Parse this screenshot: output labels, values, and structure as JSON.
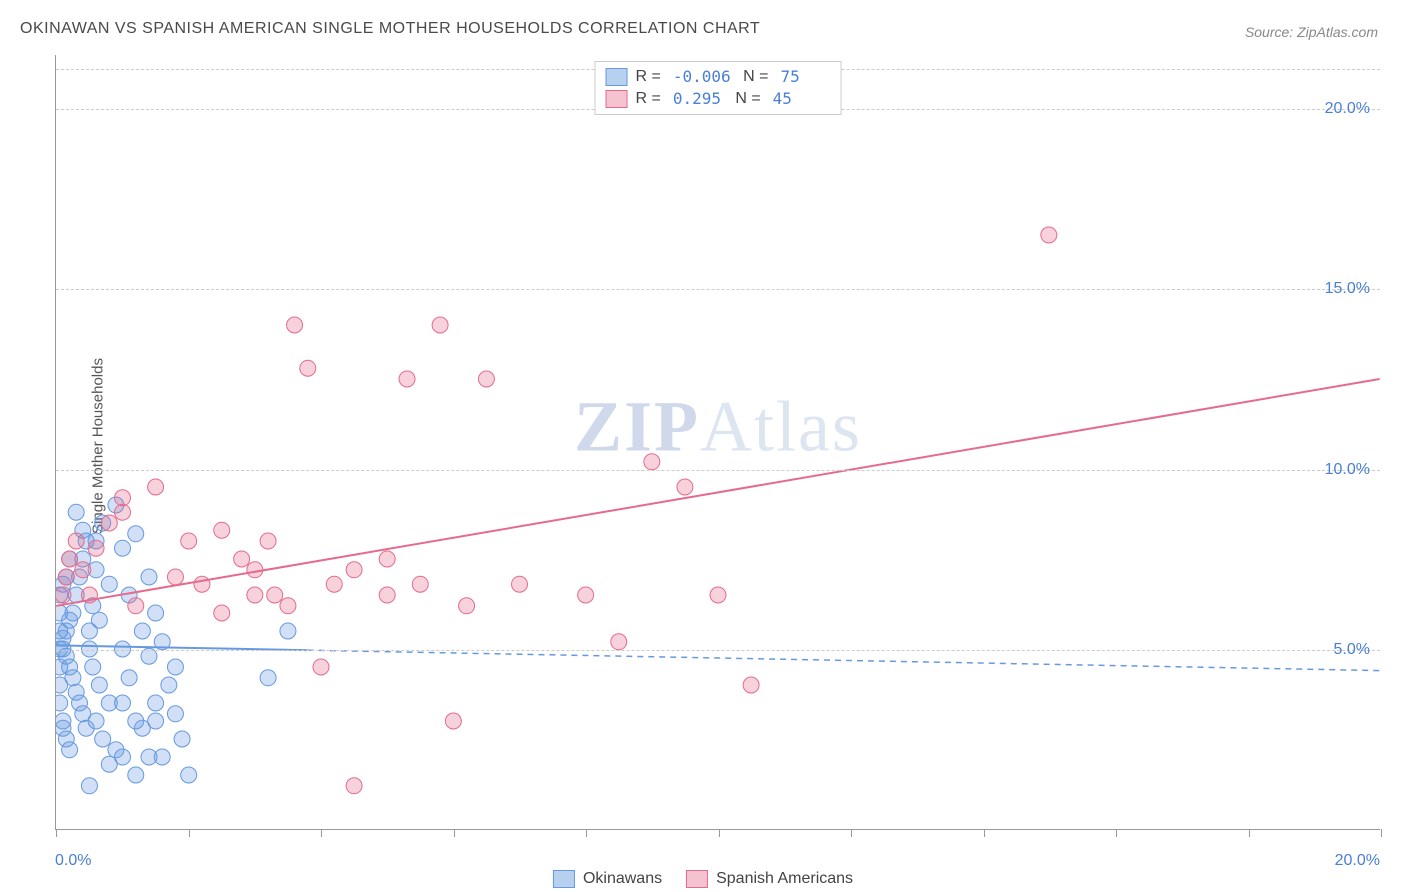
{
  "title": "OKINAWAN VS SPANISH AMERICAN SINGLE MOTHER HOUSEHOLDS CORRELATION CHART",
  "source": "Source: ZipAtlas.com",
  "y_axis_label": "Single Mother Households",
  "watermark": {
    "prefix": "ZIP",
    "suffix": "Atlas"
  },
  "chart": {
    "type": "scatter",
    "background_color": "#ffffff",
    "grid_color": "#cccccc",
    "border_color": "#999999",
    "xlim": [
      0,
      20
    ],
    "ylim": [
      0,
      21.5
    ],
    "y_ticks": [
      5,
      10,
      15,
      20
    ],
    "y_tick_labels": [
      "5.0%",
      "10.0%",
      "15.0%",
      "20.0%"
    ],
    "x_ticks": [
      0,
      2,
      4,
      6,
      8,
      10,
      12,
      14,
      16,
      18,
      20
    ],
    "x_tick_labels": {
      "0": "0.0%",
      "20": "20.0%"
    },
    "marker_radius": 8,
    "marker_fill_opacity": 0.3,
    "marker_stroke_width": 1,
    "line_width": 2
  },
  "series": [
    {
      "name": "Okinawans",
      "color": "#6699e0",
      "fill": "#b8d0f0",
      "stat_R": "-0.006",
      "stat_N": "75",
      "trend": {
        "x1": 0,
        "y1": 5.1,
        "x2": 20,
        "y2": 4.4,
        "solid_until_x": 3.8
      },
      "points": [
        [
          0.1,
          5.0
        ],
        [
          0.1,
          5.3
        ],
        [
          0.15,
          5.5
        ],
        [
          0.15,
          4.8
        ],
        [
          0.2,
          4.5
        ],
        [
          0.2,
          5.8
        ],
        [
          0.25,
          6.0
        ],
        [
          0.25,
          4.2
        ],
        [
          0.3,
          6.5
        ],
        [
          0.3,
          3.8
        ],
        [
          0.35,
          7.0
        ],
        [
          0.35,
          3.5
        ],
        [
          0.4,
          7.5
        ],
        [
          0.4,
          3.2
        ],
        [
          0.45,
          8.0
        ],
        [
          0.45,
          2.8
        ],
        [
          0.5,
          5.0
        ],
        [
          0.5,
          5.5
        ],
        [
          0.55,
          4.5
        ],
        [
          0.55,
          6.2
        ],
        [
          0.6,
          3.0
        ],
        [
          0.6,
          7.2
        ],
        [
          0.65,
          4.0
        ],
        [
          0.65,
          5.8
        ],
        [
          0.7,
          8.5
        ],
        [
          0.7,
          2.5
        ],
        [
          0.8,
          3.5
        ],
        [
          0.8,
          6.8
        ],
        [
          0.9,
          9.0
        ],
        [
          0.9,
          2.2
        ],
        [
          1.0,
          5.0
        ],
        [
          1.0,
          7.8
        ],
        [
          1.1,
          4.2
        ],
        [
          1.1,
          6.5
        ],
        [
          1.2,
          3.0
        ],
        [
          1.2,
          8.2
        ],
        [
          1.3,
          5.5
        ],
        [
          1.3,
          2.8
        ],
        [
          1.4,
          4.8
        ],
        [
          1.4,
          7.0
        ],
        [
          1.5,
          3.5
        ],
        [
          1.5,
          6.0
        ],
        [
          1.6,
          2.0
        ],
        [
          1.6,
          5.2
        ],
        [
          1.7,
          4.0
        ],
        [
          1.8,
          3.2
        ],
        [
          1.9,
          2.5
        ],
        [
          2.0,
          1.5
        ],
        [
          0.5,
          1.2
        ],
        [
          0.8,
          1.8
        ],
        [
          1.0,
          2.0
        ],
        [
          1.2,
          1.5
        ],
        [
          0.3,
          8.8
        ],
        [
          0.4,
          8.3
        ],
        [
          0.6,
          8.0
        ],
        [
          0.2,
          7.5
        ],
        [
          0.15,
          7.0
        ],
        [
          0.1,
          6.8
        ],
        [
          0.05,
          6.5
        ],
        [
          0.05,
          6.0
        ],
        [
          0.05,
          5.5
        ],
        [
          0.05,
          5.0
        ],
        [
          0.05,
          4.5
        ],
        [
          0.05,
          4.0
        ],
        [
          0.05,
          3.5
        ],
        [
          0.1,
          3.0
        ],
        [
          0.1,
          2.8
        ],
        [
          0.15,
          2.5
        ],
        [
          0.2,
          2.2
        ],
        [
          1.4,
          2.0
        ],
        [
          1.0,
          3.5
        ],
        [
          1.5,
          3.0
        ],
        [
          1.8,
          4.5
        ],
        [
          3.2,
          4.2
        ],
        [
          3.5,
          5.5
        ]
      ]
    },
    {
      "name": "Spanish Americans",
      "color": "#e56b8c",
      "fill": "#f5c2d0",
      "stat_R": "0.295",
      "stat_N": "45",
      "trend": {
        "x1": 0,
        "y1": 6.2,
        "x2": 20,
        "y2": 12.5,
        "solid_until_x": 20
      },
      "points": [
        [
          0.2,
          7.5
        ],
        [
          0.3,
          8.0
        ],
        [
          0.5,
          6.5
        ],
        [
          0.6,
          7.8
        ],
        [
          0.8,
          8.5
        ],
        [
          1.0,
          9.2
        ],
        [
          1.2,
          6.2
        ],
        [
          1.5,
          9.5
        ],
        [
          1.8,
          7.0
        ],
        [
          2.0,
          8.0
        ],
        [
          2.2,
          6.8
        ],
        [
          2.5,
          8.3
        ],
        [
          2.8,
          7.5
        ],
        [
          3.0,
          6.5
        ],
        [
          3.2,
          8.0
        ],
        [
          3.5,
          6.2
        ],
        [
          3.8,
          12.8
        ],
        [
          4.0,
          4.5
        ],
        [
          4.2,
          6.8
        ],
        [
          4.5,
          1.2
        ],
        [
          5.0,
          6.5
        ],
        [
          5.3,
          12.5
        ],
        [
          5.5,
          6.8
        ],
        [
          5.8,
          14.0
        ],
        [
          6.0,
          3.0
        ],
        [
          6.5,
          12.5
        ],
        [
          7.0,
          6.8
        ],
        [
          8.0,
          6.5
        ],
        [
          8.5,
          5.2
        ],
        [
          9.0,
          10.2
        ],
        [
          9.5,
          9.5
        ],
        [
          10.0,
          6.5
        ],
        [
          10.5,
          4.0
        ],
        [
          15.0,
          16.5
        ],
        [
          3.3,
          6.5
        ],
        [
          3.6,
          14.0
        ],
        [
          1.0,
          8.8
        ],
        [
          0.15,
          7.0
        ],
        [
          0.1,
          6.5
        ],
        [
          0.4,
          7.2
        ],
        [
          2.5,
          6.0
        ],
        [
          4.5,
          7.2
        ],
        [
          3.0,
          7.2
        ],
        [
          6.2,
          6.2
        ],
        [
          5.0,
          7.5
        ]
      ]
    }
  ]
}
